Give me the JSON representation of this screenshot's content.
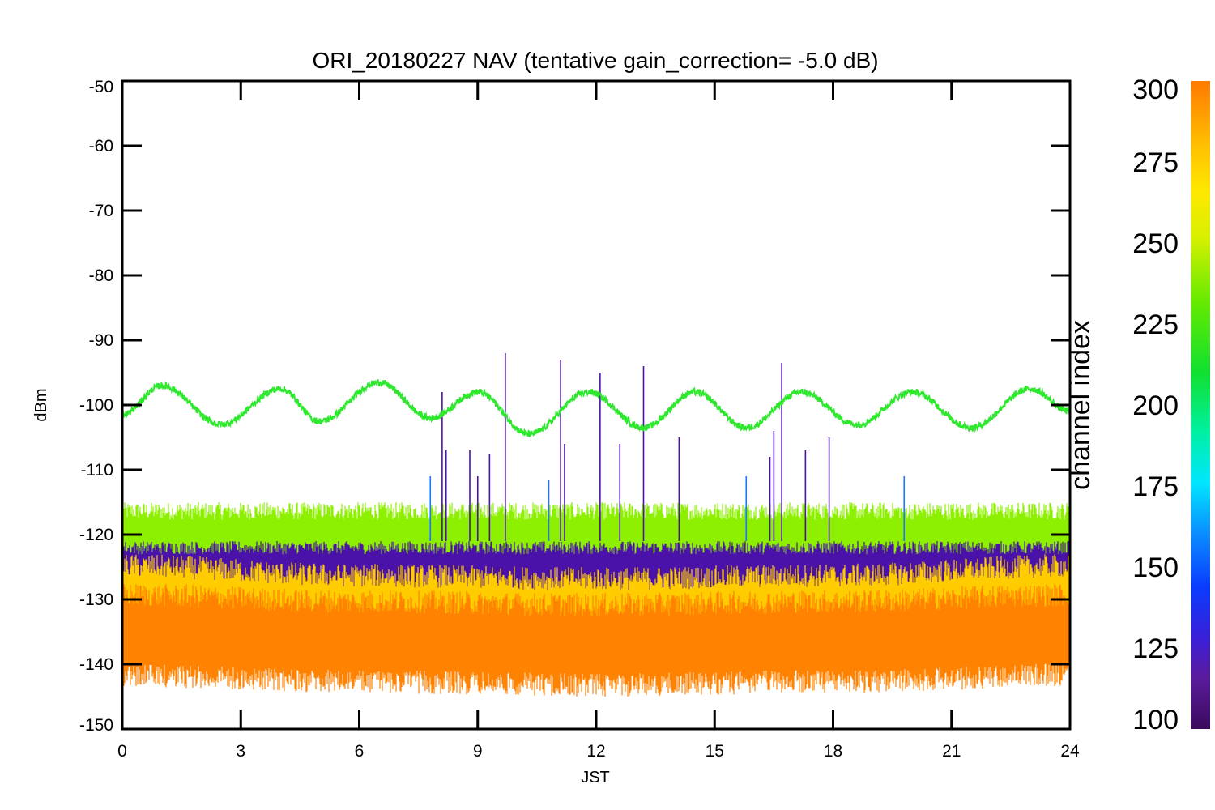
{
  "chart_data": {
    "type": "line",
    "title": "ORI_20180227 NAV (tentative gain_correction= -5.0 dB)",
    "xlabel": "JST",
    "ylabel": "dBm",
    "xlim": [
      0,
      24
    ],
    "ylim": [
      -150,
      -50
    ],
    "x_ticks": [
      "0",
      "3",
      "6",
      "9",
      "12",
      "15",
      "18",
      "21",
      "24"
    ],
    "y_ticks": [
      "-50",
      "-60",
      "-70",
      "-80",
      "-90",
      "-100",
      "-110",
      "-120",
      "-130",
      "-140",
      "-150"
    ],
    "colorbar": {
      "label": "channel index",
      "range": [
        100,
        300
      ],
      "ticks": [
        "300",
        "275",
        "250",
        "225",
        "200",
        "175",
        "150",
        "125",
        "100"
      ]
    },
    "series": [
      {
        "channel_index": 240,
        "color": "#2ee82e",
        "x": [
          0,
          1,
          2.5,
          4,
          5,
          6.5,
          7.8,
          9,
          10.3,
          11.8,
          13.2,
          14.5,
          15.8,
          17.2,
          18.6,
          20,
          21.5,
          23,
          24
        ],
        "y": [
          -101.5,
          -97,
          -103,
          -97.5,
          -102.5,
          -96.5,
          -102,
          -98,
          -104.5,
          -98,
          -103.5,
          -98,
          -103.5,
          -98,
          -103,
          -98,
          -103.5,
          -97.5,
          -101
        ]
      },
      {
        "channel_index": 260,
        "color": "#8cf000",
        "x": [
          0,
          6,
          12,
          18,
          24
        ],
        "y": [
          -121,
          -121,
          -121,
          -121,
          -121
        ]
      },
      {
        "channel_index": 120,
        "color": "#4a12a8",
        "x": [
          0,
          6,
          12,
          18,
          24
        ],
        "y": [
          -125.5,
          -125.5,
          -125.5,
          -125.5,
          -125.5
        ]
      },
      {
        "channel_index": 285,
        "color": "#ffcc00",
        "x": [
          0,
          6,
          12,
          18,
          24
        ],
        "y": [
          -131,
          -132.5,
          -133,
          -132.5,
          -131
        ]
      },
      {
        "channel_index": 295,
        "color": "#ff8200",
        "x": [
          0,
          6,
          12,
          18,
          24
        ],
        "y": [
          -135.5,
          -136.5,
          -137,
          -136.5,
          -135.5
        ]
      }
    ],
    "spikes": [
      {
        "x": 8.1,
        "y": -98,
        "color": "#4a12a8"
      },
      {
        "x": 8.2,
        "y": -107,
        "color": "#4a12a8"
      },
      {
        "x": 8.8,
        "y": -107,
        "color": "#4a12a8"
      },
      {
        "x": 9.0,
        "y": -111,
        "color": "#4a12a8"
      },
      {
        "x": 9.3,
        "y": -107.5,
        "color": "#4a12a8"
      },
      {
        "x": 9.7,
        "y": -92,
        "color": "#4a12a8"
      },
      {
        "x": 11.1,
        "y": -93,
        "color": "#4a12a8"
      },
      {
        "x": 11.2,
        "y": -106,
        "color": "#4a12a8"
      },
      {
        "x": 12.1,
        "y": -95,
        "color": "#4a12a8"
      },
      {
        "x": 12.6,
        "y": -106,
        "color": "#4a12a8"
      },
      {
        "x": 13.2,
        "y": -94,
        "color": "#4a12a8"
      },
      {
        "x": 14.1,
        "y": -105,
        "color": "#4a12a8"
      },
      {
        "x": 16.4,
        "y": -108,
        "color": "#4a12a8"
      },
      {
        "x": 16.5,
        "y": -104,
        "color": "#4a12a8"
      },
      {
        "x": 16.7,
        "y": -93.5,
        "color": "#4a12a8"
      },
      {
        "x": 17.3,
        "y": -107,
        "color": "#4a12a8"
      },
      {
        "x": 17.9,
        "y": -105,
        "color": "#4a12a8"
      },
      {
        "x": 7.8,
        "y": -111,
        "color": "#1a78ff"
      },
      {
        "x": 10.8,
        "y": -111.5,
        "color": "#1a78ff"
      },
      {
        "x": 15.8,
        "y": -111,
        "color": "#1a78ff"
      },
      {
        "x": 19.8,
        "y": -111,
        "color": "#1a78ff"
      }
    ]
  }
}
